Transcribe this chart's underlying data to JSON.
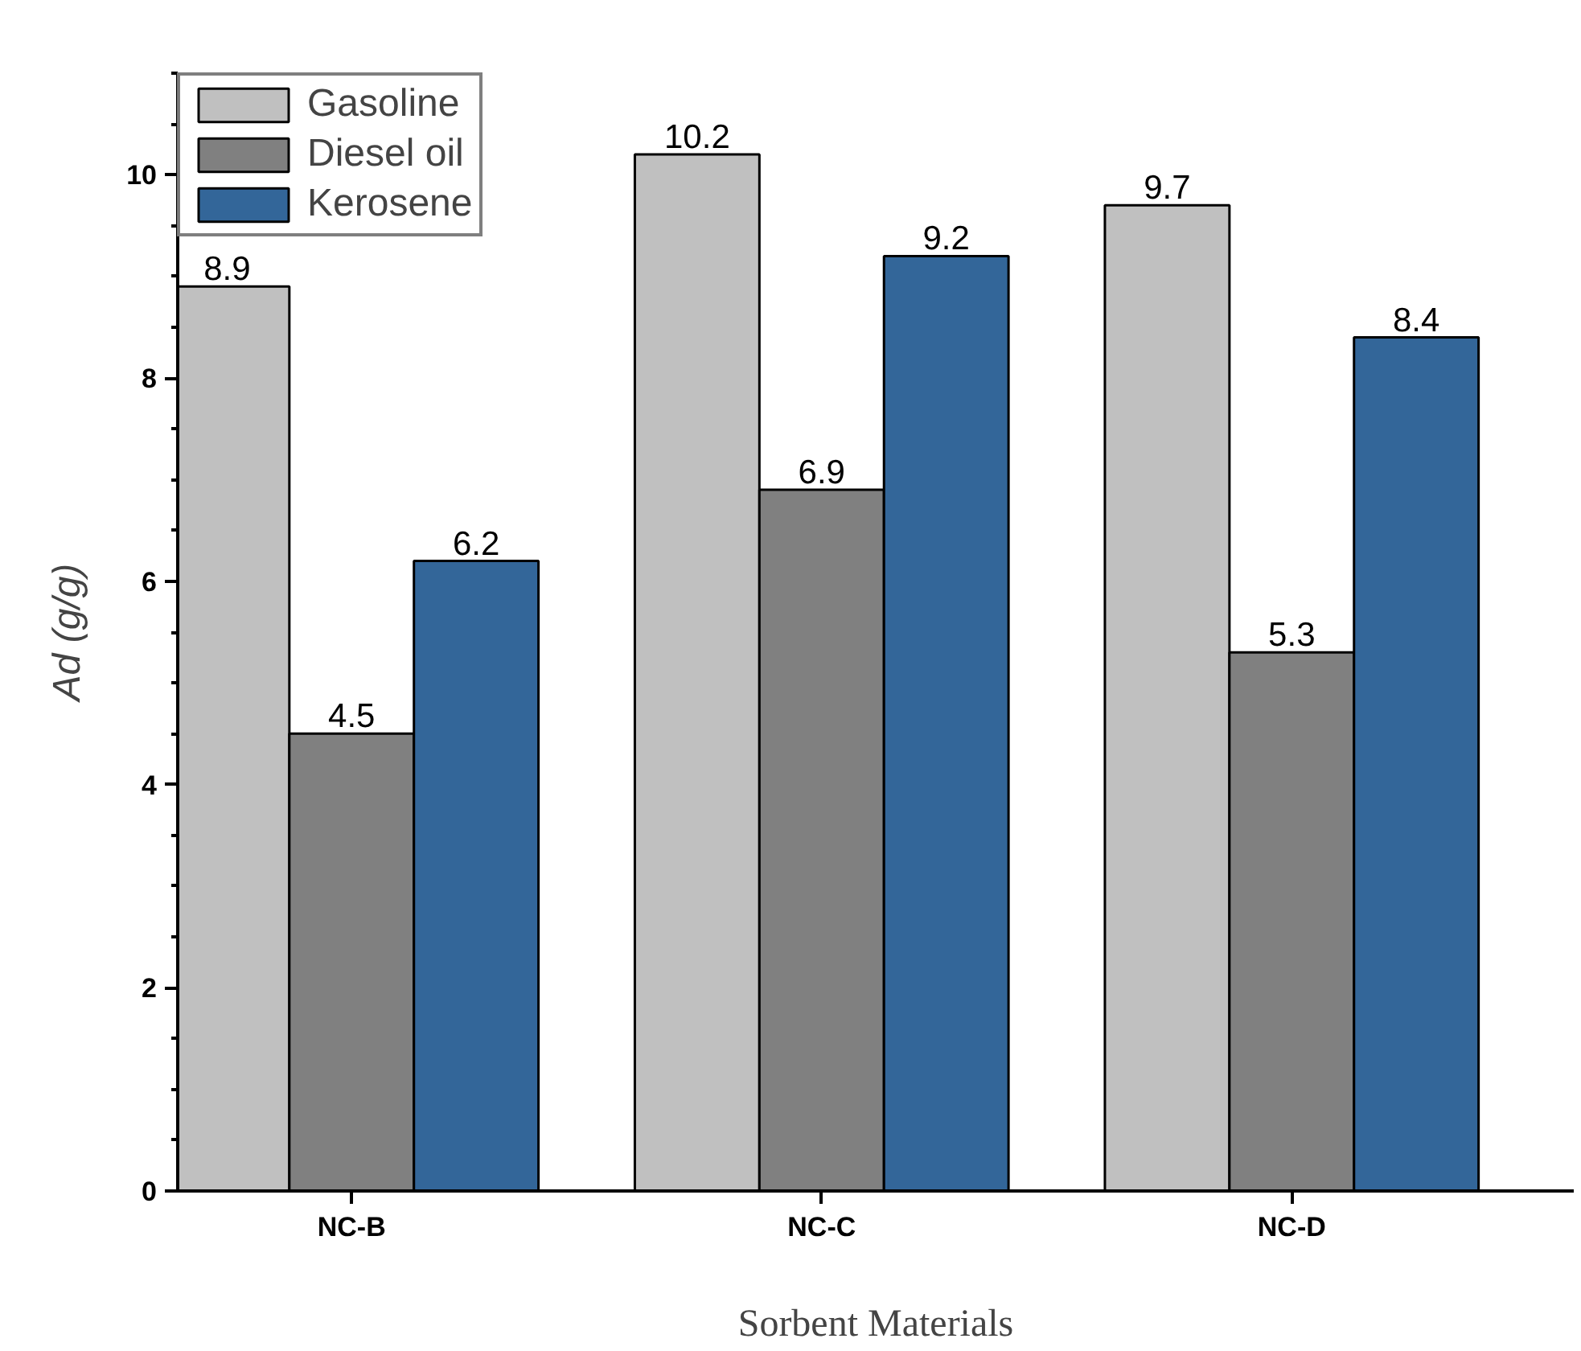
{
  "chart_data": {
    "type": "bar",
    "xlabel": "Sorbent Materials",
    "ylabel": "Ad (g/g)",
    "categories": [
      "NC-B",
      "NC-C",
      "NC-D"
    ],
    "series": [
      {
        "name": "Gasoline",
        "color": "#c0c0c0",
        "values": [
          8.9,
          10.2,
          9.7
        ]
      },
      {
        "name": "Diesel oil",
        "color": "#808080",
        "values": [
          4.5,
          6.9,
          5.3
        ]
      },
      {
        "name": "Kerosene",
        "color": "#336699",
        "values": [
          6.2,
          9.2,
          8.4
        ]
      }
    ],
    "ylim": [
      0,
      11
    ],
    "yticks": [
      0,
      2,
      4,
      6,
      8,
      10
    ],
    "grid": false,
    "legend": "top left",
    "data_labels": true
  }
}
